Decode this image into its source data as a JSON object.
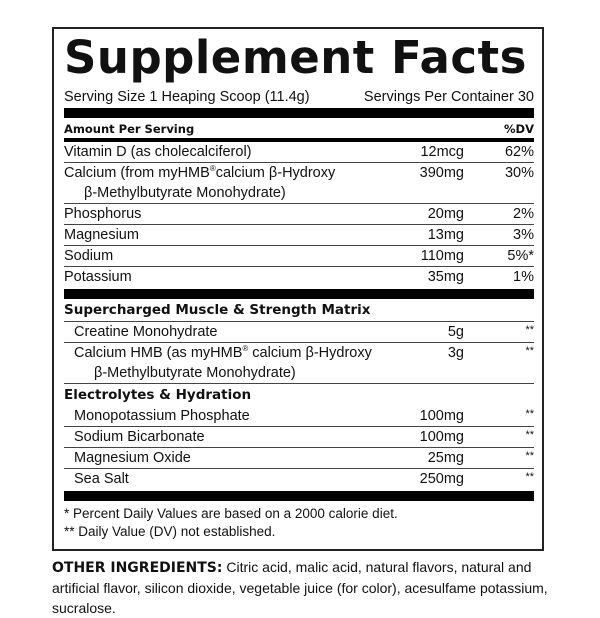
{
  "title": "Supplement Facts",
  "serving_size": "Serving Size 1 Heaping Scoop (11.4g)",
  "servings_per_container": "Servings Per Container 30",
  "header": {
    "amount": "Amount Per Serving",
    "dv": "%DV"
  },
  "nutrients": [
    {
      "name": "Vitamin D (as cholecalciferol)",
      "amount": "12mcg",
      "dv": "62%"
    },
    {
      "name": "Calcium (from myHMB",
      "sup": "®",
      "name_rest": "calcium β-Hydroxy",
      "cont": "β-Methylbutyrate Monohydrate)",
      "amount": "390mg",
      "dv": "30%"
    },
    {
      "name": "Phosphorus",
      "amount": "20mg",
      "dv": "2%"
    },
    {
      "name": "Magnesium",
      "amount": "13mg",
      "dv": "3%"
    },
    {
      "name": "Sodium",
      "amount": "110mg",
      "dv": "5%*"
    },
    {
      "name": "Potassium",
      "amount": "35mg",
      "dv": "1%"
    }
  ],
  "matrix": {
    "title": "Supercharged Muscle & Strength Matrix",
    "items": [
      {
        "name": "Creatine Monohydrate",
        "amount": "5g",
        "dv": "**"
      },
      {
        "name": "Calcium HMB (as myHMB",
        "sup": "®",
        "name_rest": " calcium β-Hydroxy",
        "cont": "β-Methylbutyrate Monohydrate)",
        "amount": "3g",
        "dv": "**"
      }
    ]
  },
  "electrolytes": {
    "title": "Electrolytes & Hydration",
    "items": [
      {
        "name": "Monopotassium Phosphate",
        "amount": "100mg",
        "dv": "**"
      },
      {
        "name": "Sodium Bicarbonate",
        "amount": "100mg",
        "dv": "**"
      },
      {
        "name": "Magnesium Oxide",
        "amount": "25mg",
        "dv": "**"
      },
      {
        "name": "Sea Salt",
        "amount": "250mg",
        "dv": "**"
      }
    ]
  },
  "footnotes": [
    "* Percent Daily Values are based on a 2000 calorie diet.",
    "** Daily Value (DV) not established."
  ],
  "other_ingredients": {
    "label": "OTHER INGREDIENTS:",
    "text": " Citric acid, malic acid, natural flavors, natural and artificial flavor, silicon dioxide, vegetable juice (for color), acesulfame potassium, sucralose."
  }
}
